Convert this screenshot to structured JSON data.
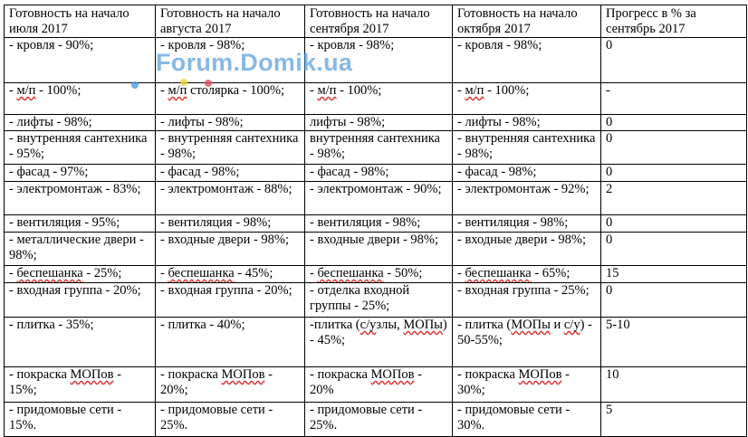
{
  "headers": [
    "Готовность на начало июля 2017",
    "Готовность на начало августа 2017",
    "Готовность на начало сентября 2017",
    "Готовность на начало октября 2017",
    "Прогресс в % за сентябрь 2017"
  ],
  "rows": [
    {
      "h": 50,
      "cells": [
        "- кровля - 90%;",
        "- кровля - 98%;",
        "- кровля - 98%;",
        "- кровля - 98%;",
        "0"
      ]
    },
    {
      "h": 35,
      "cells": [
        "- м/п - 100%;",
        "- м/п столярка - 100%;",
        "- м/п - 100%;",
        "- м/п - 100%;",
        "-"
      ]
    },
    {
      "h": 17,
      "cells": [
        "- лифты - 98%;",
        "- лифты - 98%;",
        "лифты - 98%;",
        "- лифты - 98%;",
        "0"
      ]
    },
    {
      "h": 37,
      "cells": [
        "- внутренняя сантехника - 95%;",
        "- внутренняя сантехника - 98%;",
        "внутренняя сантехника - 98%;",
        "- внутренняя сантехника - 98%;",
        "0"
      ]
    },
    {
      "h": 19,
      "cells": [
        "- фасад - 97%;",
        "- фасад - 98%;",
        "- фасад - 98%;",
        "- фасад - 98%;",
        "0"
      ]
    },
    {
      "h": 37,
      "cells": [
        "- электромонтаж - 83%;",
        "- электромонтаж - 88%;",
        "- электромонтаж - 90%;",
        "- электромонтаж - 92%;",
        "2"
      ]
    },
    {
      "h": 19,
      "cells": [
        "- вентиляция - 95%;",
        "- вентиляция - 98%;",
        "- вентиляция - 98%;",
        "- вентиляция - 98%;",
        "0"
      ]
    },
    {
      "h": 37,
      "cells": [
        "- металлические двери - 98%;",
        "- входные двери - 98%;",
        "- входные двери - 98%;",
        "- входные двери - 98%;",
        "0"
      ]
    },
    {
      "h": 19,
      "cells": [
        "- беспешанка - 25%;",
        "- беспешанка - 45%;",
        "- беспешанка - 50%;",
        "- беспешанка - 65%;",
        "15"
      ]
    },
    {
      "h": 38,
      "cells": [
        "- входная группа - 20%;",
        "- входная группа - 20%;",
        "- отделка входной группы - 25%;",
        "- входная группа - 25%;",
        "0"
      ]
    },
    {
      "h": 55,
      "cells": [
        "- плитка - 35%;",
        "- плитка - 40%;",
        "-плитка (с/узлы, МОПы) - 45%;",
        "- плитка (МОПы и с/у) - 50-55%;",
        "5-10"
      ]
    },
    {
      "h": 39,
      "cells": [
        "- покраска МОПов - 15%;",
        "- покраска МОПов - 20%;",
        "- покраска МОПов - 20%",
        "- покраска МОПов - 30%;",
        "10"
      ]
    },
    {
      "h": 38,
      "cells": [
        "- придомовые сети - 15%.",
        "- придомовые сети - 25%.",
        "- придомовые сети - 25%.",
        "- придомовые сети - 30%.",
        "5"
      ]
    }
  ],
  "watermark": "Forum.Domik.ua"
}
